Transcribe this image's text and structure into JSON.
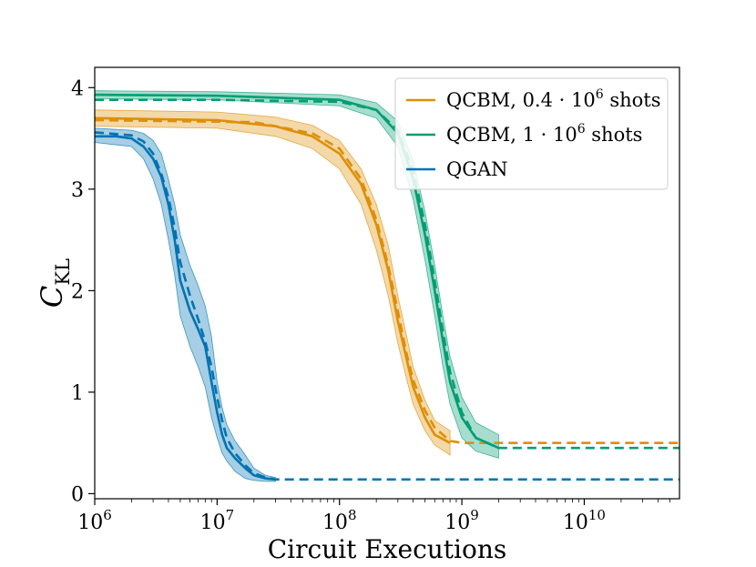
{
  "chart_data": {
    "type": "line",
    "xscale": "log",
    "xlim": [
      1000000,
      60000000000
    ],
    "ylim": [
      -0.05,
      4.2
    ],
    "xlabel": "Circuit Executions",
    "ylabel": {
      "main": "C",
      "sub": "KL"
    },
    "x_ticks": [
      {
        "value": 1000000,
        "base": "10",
        "exp": "6"
      },
      {
        "value": 10000000,
        "base": "10",
        "exp": "7"
      },
      {
        "value": 100000000,
        "base": "10",
        "exp": "8"
      },
      {
        "value": 1000000000,
        "base": "10",
        "exp": "9"
      },
      {
        "value": 10000000000,
        "base": "10",
        "exp": "10"
      }
    ],
    "y_ticks": [
      {
        "value": 0,
        "label": "0"
      },
      {
        "value": 1,
        "label": "1"
      },
      {
        "value": 2,
        "label": "2"
      },
      {
        "value": 3,
        "label": "3"
      },
      {
        "value": 4,
        "label": "4"
      }
    ],
    "legend": {
      "position": "top-right",
      "entries": [
        {
          "id": "qcbm04",
          "name": "QCBM, 0.4 · 10",
          "sup": "6",
          "suffix": " shots",
          "color": "#de8f05"
        },
        {
          "id": "qcbm1",
          "name": "QCBM, 1 · 10",
          "sup": "6",
          "suffix": " shots",
          "color": "#029e73"
        },
        {
          "id": "qgan",
          "name": "QGAN",
          "sup": "",
          "suffix": "",
          "color": "#0173b2"
        }
      ]
    },
    "series": [
      {
        "id": "qcbm04",
        "color": "#de8f05",
        "solid": [
          [
            1000000,
            3.7
          ],
          [
            10000000,
            3.68
          ],
          [
            30000000,
            3.62
          ],
          [
            60000000,
            3.52
          ],
          [
            100000000,
            3.35
          ],
          [
            150000000,
            3.05
          ],
          [
            200000000,
            2.65
          ],
          [
            250000000,
            2.2
          ],
          [
            300000000,
            1.7
          ],
          [
            350000000,
            1.35
          ],
          [
            400000000,
            1.05
          ],
          [
            500000000,
            0.75
          ],
          [
            600000000,
            0.58
          ],
          [
            800000000,
            0.5
          ]
        ],
        "upper": [
          [
            1000000,
            3.78
          ],
          [
            10000000,
            3.76
          ],
          [
            30000000,
            3.71
          ],
          [
            60000000,
            3.63
          ],
          [
            100000000,
            3.48
          ],
          [
            150000000,
            3.2
          ],
          [
            200000000,
            2.85
          ],
          [
            250000000,
            2.45
          ],
          [
            300000000,
            1.95
          ],
          [
            350000000,
            1.58
          ],
          [
            400000000,
            1.25
          ],
          [
            500000000,
            0.92
          ],
          [
            600000000,
            0.72
          ],
          [
            800000000,
            0.62
          ]
        ],
        "lower": [
          [
            1000000,
            3.62
          ],
          [
            10000000,
            3.6
          ],
          [
            30000000,
            3.52
          ],
          [
            60000000,
            3.4
          ],
          [
            100000000,
            3.2
          ],
          [
            150000000,
            2.85
          ],
          [
            200000000,
            2.4
          ],
          [
            250000000,
            1.95
          ],
          [
            300000000,
            1.48
          ],
          [
            350000000,
            1.15
          ],
          [
            400000000,
            0.88
          ],
          [
            500000000,
            0.62
          ],
          [
            600000000,
            0.48
          ],
          [
            800000000,
            0.38
          ]
        ],
        "dashed": [
          [
            1000000,
            3.68
          ],
          [
            20000000,
            3.66
          ],
          [
            60000000,
            3.55
          ],
          [
            100000000,
            3.4
          ],
          [
            150000000,
            3.1
          ],
          [
            200000000,
            2.7
          ],
          [
            250000000,
            2.25
          ],
          [
            300000000,
            1.8
          ],
          [
            350000000,
            1.4
          ],
          [
            400000000,
            1.12
          ],
          [
            500000000,
            0.82
          ],
          [
            600000000,
            0.65
          ],
          [
            800000000,
            0.52
          ],
          [
            1000000000,
            0.5
          ],
          [
            60000000000,
            0.5
          ]
        ]
      },
      {
        "id": "qcbm1",
        "color": "#029e73",
        "solid": [
          [
            1000000,
            3.93
          ],
          [
            10000000,
            3.92
          ],
          [
            100000000,
            3.88
          ],
          [
            200000000,
            3.78
          ],
          [
            300000000,
            3.55
          ],
          [
            400000000,
            3.1
          ],
          [
            500000000,
            2.55
          ],
          [
            600000000,
            2.0
          ],
          [
            700000000,
            1.5
          ],
          [
            800000000,
            1.1
          ],
          [
            1000000000,
            0.75
          ],
          [
            1300000000,
            0.55
          ],
          [
            2000000000,
            0.45
          ]
        ],
        "upper": [
          [
            1000000,
            3.97
          ],
          [
            10000000,
            3.96
          ],
          [
            100000000,
            3.93
          ],
          [
            200000000,
            3.85
          ],
          [
            300000000,
            3.67
          ],
          [
            400000000,
            3.28
          ],
          [
            500000000,
            2.78
          ],
          [
            600000000,
            2.25
          ],
          [
            700000000,
            1.75
          ],
          [
            800000000,
            1.35
          ],
          [
            1000000000,
            0.95
          ],
          [
            1300000000,
            0.7
          ],
          [
            2000000000,
            0.58
          ]
        ],
        "lower": [
          [
            1000000,
            3.89
          ],
          [
            10000000,
            3.88
          ],
          [
            100000000,
            3.82
          ],
          [
            200000000,
            3.7
          ],
          [
            300000000,
            3.42
          ],
          [
            400000000,
            2.9
          ],
          [
            500000000,
            2.3
          ],
          [
            600000000,
            1.75
          ],
          [
            700000000,
            1.25
          ],
          [
            800000000,
            0.88
          ],
          [
            1000000000,
            0.55
          ],
          [
            1300000000,
            0.42
          ],
          [
            2000000000,
            0.35
          ]
        ],
        "dashed": [
          [
            1000000,
            3.88
          ],
          [
            10000000,
            3.88
          ],
          [
            100000000,
            3.86
          ],
          [
            200000000,
            3.78
          ],
          [
            300000000,
            3.58
          ],
          [
            400000000,
            3.18
          ],
          [
            500000000,
            2.65
          ],
          [
            600000000,
            2.1
          ],
          [
            700000000,
            1.6
          ],
          [
            800000000,
            1.2
          ],
          [
            1000000000,
            0.8
          ],
          [
            1300000000,
            0.55
          ],
          [
            2000000000,
            0.45
          ],
          [
            60000000000,
            0.45
          ]
        ]
      },
      {
        "id": "qgan",
        "color": "#0173b2",
        "solid": [
          [
            1000000,
            3.52
          ],
          [
            1500000,
            3.52
          ],
          [
            2000000,
            3.5
          ],
          [
            2500000,
            3.42
          ],
          [
            3000000,
            3.3
          ],
          [
            3500000,
            3.12
          ],
          [
            4000000,
            2.85
          ],
          [
            4500000,
            2.5
          ],
          [
            5000000,
            2.1
          ],
          [
            6000000,
            1.8
          ],
          [
            7000000,
            1.62
          ],
          [
            8000000,
            1.45
          ],
          [
            9000000,
            1.1
          ],
          [
            10000000,
            0.8
          ],
          [
            11000000,
            0.58
          ],
          [
            12000000,
            0.45
          ],
          [
            14000000,
            0.35
          ],
          [
            17000000,
            0.25
          ],
          [
            20000000,
            0.18
          ],
          [
            25000000,
            0.15
          ],
          [
            30000000,
            0.14
          ]
        ],
        "upper": [
          [
            1000000,
            3.6
          ],
          [
            2000000,
            3.58
          ],
          [
            2500000,
            3.55
          ],
          [
            3000000,
            3.48
          ],
          [
            3500000,
            3.35
          ],
          [
            4000000,
            3.1
          ],
          [
            4500000,
            2.85
          ],
          [
            5000000,
            2.55
          ],
          [
            6000000,
            2.25
          ],
          [
            7000000,
            2.05
          ],
          [
            8000000,
            1.85
          ],
          [
            9000000,
            1.55
          ],
          [
            10000000,
            1.1
          ],
          [
            11000000,
            0.85
          ],
          [
            12000000,
            0.68
          ],
          [
            14000000,
            0.52
          ],
          [
            17000000,
            0.38
          ],
          [
            20000000,
            0.25
          ],
          [
            25000000,
            0.18
          ],
          [
            30000000,
            0.16
          ]
        ],
        "lower": [
          [
            1000000,
            3.46
          ],
          [
            2000000,
            3.42
          ],
          [
            2500000,
            3.3
          ],
          [
            3000000,
            3.1
          ],
          [
            3500000,
            2.85
          ],
          [
            4000000,
            2.5
          ],
          [
            4500000,
            2.15
          ],
          [
            5000000,
            1.75
          ],
          [
            6000000,
            1.45
          ],
          [
            7000000,
            1.25
          ],
          [
            8000000,
            1.05
          ],
          [
            9000000,
            0.75
          ],
          [
            10000000,
            0.55
          ],
          [
            11000000,
            0.4
          ],
          [
            12000000,
            0.32
          ],
          [
            14000000,
            0.22
          ],
          [
            17000000,
            0.15
          ],
          [
            20000000,
            0.13
          ],
          [
            25000000,
            0.12
          ],
          [
            30000000,
            0.12
          ]
        ],
        "dashed": [
          [
            1000000,
            3.56
          ],
          [
            2000000,
            3.53
          ],
          [
            2500000,
            3.47
          ],
          [
            3000000,
            3.35
          ],
          [
            3500000,
            3.15
          ],
          [
            4000000,
            2.92
          ],
          [
            4500000,
            2.62
          ],
          [
            5000000,
            2.28
          ],
          [
            6000000,
            1.95
          ],
          [
            7000000,
            1.72
          ],
          [
            8000000,
            1.5
          ],
          [
            9000000,
            1.25
          ],
          [
            10000000,
            0.95
          ],
          [
            11000000,
            0.72
          ],
          [
            12000000,
            0.55
          ],
          [
            14000000,
            0.4
          ],
          [
            17000000,
            0.28
          ],
          [
            20000000,
            0.2
          ],
          [
            25000000,
            0.16
          ],
          [
            30000000,
            0.14
          ],
          [
            60000000000,
            0.14
          ]
        ]
      }
    ]
  }
}
